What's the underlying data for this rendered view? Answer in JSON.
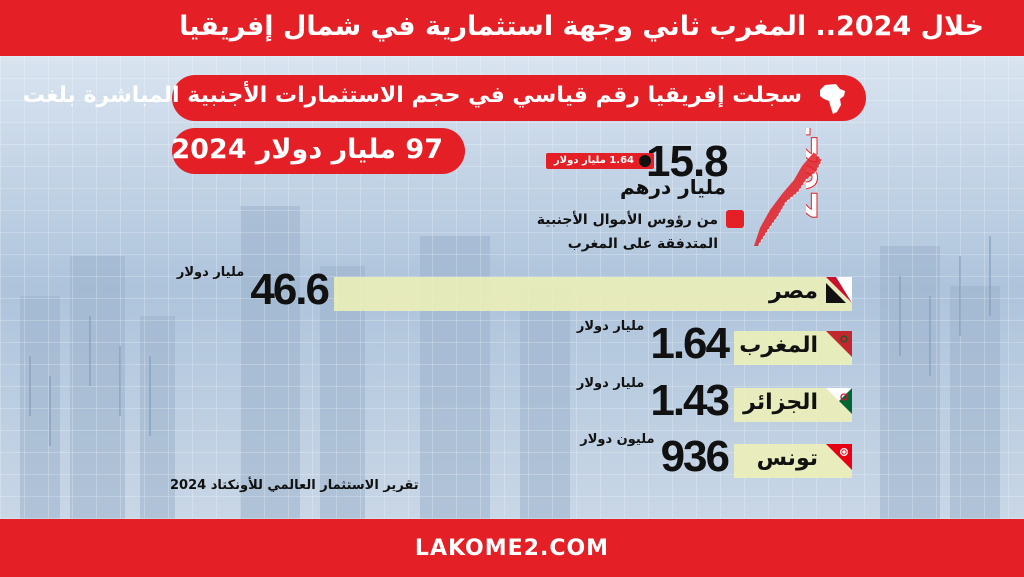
{
  "header": {
    "title": "خلال 2024.. المغرب ثاني وجهة استثمارية في شمال إفريقيا"
  },
  "subtitle": "سجلت إفريقيا رقم قياسي في حجم الاستثمارات الأجنبية المباشرة بلغت",
  "total": "97 مليار دولار 2024",
  "year_graphic": "2024",
  "morocco": {
    "value_mad": "15.8",
    "unit_mad": "مليار درهم",
    "usd_badge": "1.64 مليار دولار",
    "note": "من رؤوس الأموال الأجنبية المتدفقة على المغرب"
  },
  "chart_data": {
    "type": "bar",
    "orientation": "horizontal",
    "categories": [
      "مصر",
      "المغرب",
      "الجزائر",
      "تونس"
    ],
    "values_usd_billion": [
      46.6,
      1.64,
      1.43,
      0.936
    ],
    "labels": [
      "46.6",
      "1.64",
      "1.43",
      "936"
    ],
    "units": [
      "مليار دولار",
      "مليار دولار",
      "مليار دولار",
      "مليون دولار"
    ],
    "flags": [
      "egypt-flag",
      "morocco-flag",
      "algeria-flag",
      "tunisia-flag"
    ]
  },
  "colors": {
    "accent": "#e41f26",
    "bar": "#eef0b7",
    "background": "#b6cbe2"
  },
  "source": "تقرير الاستثمار العالمي للأونكتاد 2024",
  "footer": {
    "site": "LAKOME2.COM"
  }
}
